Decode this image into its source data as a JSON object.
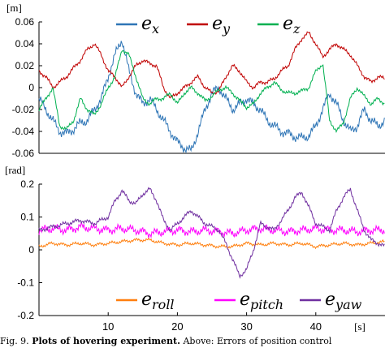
{
  "caption": {
    "label": "Fig. 9.",
    "bold": "Plots of hovering experiment.",
    "text": "Above: Errors of position control"
  },
  "chart_data": [
    {
      "type": "line",
      "unit_label": "[m]",
      "ylim": [
        -0.06,
        0.06
      ],
      "yticks": [
        "0.06",
        "0.04",
        "0.02",
        "0",
        "-0.02",
        "-0.04",
        "-0.06"
      ],
      "xlim": [
        0,
        50
      ],
      "grid": false,
      "legend": "top",
      "series": [
        {
          "name": "e_x",
          "label_main": "e",
          "label_sub": "x",
          "color": "#2e75b6",
          "x": [
            0,
            1,
            2,
            3,
            4,
            5,
            6,
            7,
            8,
            9,
            10,
            11,
            12,
            13,
            14,
            15,
            16,
            17,
            18,
            19,
            20,
            21,
            22,
            23,
            24,
            25,
            26,
            27,
            28,
            29,
            30,
            31,
            32,
            33,
            34,
            35,
            36,
            37,
            38,
            39,
            40,
            41,
            42,
            43,
            44,
            45,
            46,
            47,
            48,
            49,
            50
          ],
          "y": [
            -0.01,
            -0.02,
            -0.03,
            -0.04,
            -0.042,
            -0.038,
            -0.032,
            -0.03,
            -0.02,
            -0.01,
            0.01,
            0.03,
            0.044,
            0.015,
            -0.005,
            -0.015,
            -0.01,
            -0.02,
            -0.03,
            -0.04,
            -0.05,
            -0.055,
            -0.058,
            -0.04,
            -0.02,
            -0.005,
            0.0,
            -0.01,
            -0.02,
            -0.015,
            -0.01,
            -0.015,
            -0.02,
            -0.03,
            -0.035,
            -0.04,
            -0.042,
            -0.045,
            -0.046,
            -0.044,
            -0.035,
            -0.02,
            -0.005,
            -0.015,
            -0.03,
            -0.04,
            -0.035,
            -0.02,
            -0.03,
            -0.035,
            -0.03
          ]
        },
        {
          "name": "e_y",
          "label_main": "e",
          "label_sub": "y",
          "color": "#c00000",
          "x": [
            0,
            1,
            2,
            3,
            4,
            5,
            6,
            7,
            8,
            9,
            10,
            11,
            12,
            13,
            14,
            15,
            16,
            17,
            18,
            19,
            20,
            21,
            22,
            23,
            24,
            25,
            26,
            27,
            28,
            29,
            30,
            31,
            32,
            33,
            34,
            35,
            36,
            37,
            38,
            39,
            40,
            41,
            42,
            43,
            44,
            45,
            46,
            47,
            48,
            49,
            50
          ],
          "y": [
            0.015,
            0.01,
            0.0,
            0.005,
            0.01,
            0.018,
            0.025,
            0.035,
            0.04,
            0.03,
            0.015,
            0.01,
            0.0,
            0.01,
            0.02,
            0.025,
            0.022,
            0.02,
            0.0,
            -0.01,
            -0.005,
            0.0,
            0.005,
            0.01,
            0.0,
            -0.005,
            -0.003,
            0.01,
            0.02,
            0.015,
            0.005,
            0.0,
            0.005,
            0.005,
            0.008,
            0.015,
            0.02,
            0.035,
            0.045,
            0.05,
            0.04,
            0.028,
            0.035,
            0.04,
            0.035,
            0.03,
            0.02,
            0.01,
            0.005,
            0.01,
            0.008
          ]
        },
        {
          "name": "e_z",
          "label_main": "e",
          "label_sub": "z",
          "color": "#00b050",
          "x": [
            0,
            1,
            2,
            3,
            4,
            5,
            6,
            7,
            8,
            9,
            10,
            11,
            12,
            13,
            14,
            15,
            16,
            17,
            18,
            19,
            20,
            21,
            22,
            23,
            24,
            25,
            26,
            27,
            28,
            29,
            30,
            31,
            32,
            33,
            34,
            35,
            36,
            37,
            38,
            39,
            40,
            41,
            42,
            43,
            44,
            45,
            46,
            47,
            48,
            49,
            50
          ],
          "y": [
            -0.02,
            -0.01,
            0.0,
            -0.035,
            -0.038,
            -0.03,
            -0.01,
            -0.02,
            -0.025,
            -0.015,
            0.0,
            0.01,
            0.035,
            0.03,
            0.01,
            -0.01,
            -0.015,
            -0.01,
            -0.01,
            -0.005,
            -0.015,
            -0.005,
            0.0,
            -0.005,
            -0.012,
            -0.008,
            -0.002,
            0.0,
            -0.005,
            -0.012,
            -0.018,
            -0.015,
            -0.005,
            0.0,
            0.005,
            -0.002,
            -0.005,
            -0.005,
            -0.003,
            0.0,
            0.015,
            0.022,
            -0.03,
            -0.04,
            -0.032,
            -0.01,
            0.0,
            -0.008,
            -0.015,
            -0.01,
            -0.015
          ]
        }
      ]
    },
    {
      "type": "line",
      "unit_label": "[rad]",
      "ylim": [
        -0.2,
        0.2
      ],
      "yticks": [
        "0.2",
        "0.1",
        "0",
        "-0.1",
        "-0.2"
      ],
      "xlim": [
        0,
        50
      ],
      "xticks": [
        10,
        20,
        30,
        40
      ],
      "xticklabels": [
        "10",
        "20",
        "30",
        "40"
      ],
      "xlabel": "[s]",
      "grid": false,
      "legend": "bottom",
      "series": [
        {
          "name": "e_roll",
          "label_main": "e",
          "label_sub": "roll",
          "color": "#ff7f0e",
          "x": [
            0,
            2,
            4,
            6,
            8,
            10,
            12,
            14,
            16,
            18,
            20,
            22,
            24,
            26,
            28,
            30,
            32,
            34,
            36,
            38,
            40,
            42,
            44,
            46,
            48,
            50
          ],
          "y": [
            0.01,
            0.02,
            0.015,
            0.02,
            0.015,
            0.02,
            0.025,
            0.03,
            0.03,
            0.02,
            0.015,
            0.02,
            0.015,
            0.01,
            0.01,
            0.02,
            0.015,
            0.02,
            0.015,
            0.02,
            0.01,
            0.015,
            0.02,
            0.015,
            0.02,
            0.025
          ]
        },
        {
          "name": "e_pitch",
          "label_main": "e",
          "label_sub": "pitch",
          "color": "#ff00ff",
          "x": [
            0,
            2,
            4,
            6,
            8,
            10,
            12,
            14,
            16,
            18,
            20,
            22,
            24,
            26,
            28,
            30,
            32,
            34,
            36,
            38,
            40,
            42,
            44,
            46,
            48,
            50
          ],
          "y": [
            0.06,
            0.065,
            0.06,
            0.07,
            0.065,
            0.06,
            0.065,
            0.06,
            0.05,
            0.055,
            0.06,
            0.055,
            0.06,
            0.055,
            0.05,
            0.06,
            0.065,
            0.06,
            0.055,
            0.06,
            0.065,
            0.06,
            0.06,
            0.055,
            0.06,
            0.06
          ]
        },
        {
          "name": "e_yaw",
          "label_main": "e",
          "label_sub": "yaw",
          "color": "#7030a0",
          "x": [
            0,
            2,
            4,
            6,
            8,
            10,
            11,
            12,
            13,
            14,
            15,
            16,
            17,
            18,
            19,
            20,
            22,
            24,
            26,
            27,
            28,
            29,
            30,
            31,
            32,
            34,
            36,
            37,
            38,
            39,
            40,
            42,
            43,
            44,
            45,
            46,
            47,
            48,
            50
          ],
          "y": [
            0.06,
            0.07,
            0.08,
            0.09,
            0.08,
            0.1,
            0.15,
            0.18,
            0.15,
            0.14,
            0.17,
            0.185,
            0.15,
            0.09,
            0.06,
            0.08,
            0.12,
            0.08,
            0.06,
            0.02,
            -0.03,
            -0.08,
            -0.06,
            0.0,
            0.08,
            0.06,
            0.12,
            0.16,
            0.175,
            0.13,
            0.08,
            0.06,
            0.12,
            0.16,
            0.185,
            0.12,
            0.06,
            0.03,
            0.01
          ]
        }
      ]
    }
  ]
}
